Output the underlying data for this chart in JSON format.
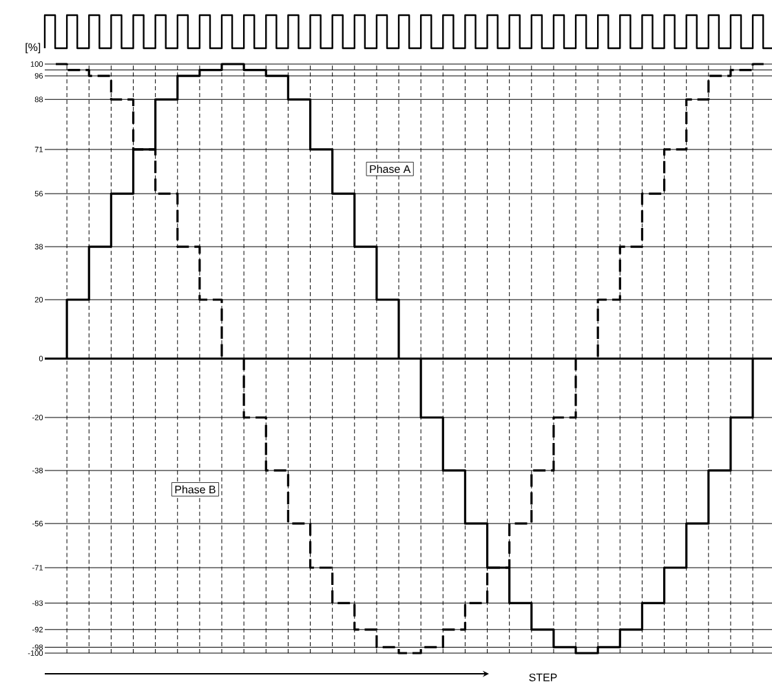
{
  "chart_data": {
    "type": "step",
    "xlabel": "STEP",
    "ylabel": "[%]",
    "categories": [
      null,
      null,
      null,
      null,
      null,
      null,
      null,
      null,
      null,
      null,
      null,
      null,
      null,
      null,
      null,
      null,
      null,
      null,
      null,
      null,
      null,
      null,
      null,
      null,
      null,
      null,
      null,
      null,
      null,
      null,
      null,
      null,
      null
    ],
    "series": [
      {
        "name": "Phase A",
        "color": "#000000",
        "line_style": "solid",
        "values": [
          0,
          20,
          38,
          56,
          71,
          88,
          96,
          98,
          100,
          98,
          96,
          88,
          71,
          56,
          38,
          20,
          0,
          -20,
          -38,
          -56,
          -71,
          -83,
          -92,
          -98,
          -100,
          -98,
          -92,
          -83,
          -71,
          -56,
          -38,
          -20,
          0
        ]
      },
      {
        "name": "Phase B",
        "color": "#000000",
        "line_style": "dashed",
        "values": [
          100,
          98,
          96,
          88,
          71,
          56,
          38,
          20,
          0,
          -20,
          -38,
          -56,
          -71,
          -83,
          -92,
          -98,
          -100,
          -98,
          -92,
          -83,
          -71,
          -56,
          -38,
          -20,
          0,
          20,
          38,
          56,
          71,
          88,
          96,
          98,
          100
        ]
      }
    ],
    "ylim": [
      -100,
      100
    ],
    "yticks": [
      100,
      {
        "value": 98,
        "label": null
      },
      96,
      88,
      71,
      56,
      38,
      20,
      0,
      -20,
      -38,
      -56,
      -71,
      -83,
      -92,
      -98,
      -100
    ],
    "ref_lines": [
      {
        "axis": "y",
        "value": 0
      }
    ],
    "grid": true,
    "marker": "none",
    "tick_labels": "y"
  }
}
